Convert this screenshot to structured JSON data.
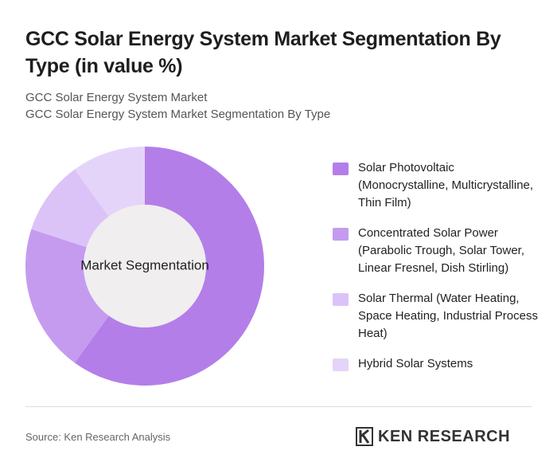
{
  "chart_data": {
    "type": "donut",
    "title": "GCC Solar Energy System Market Segmentation By Type (in value %)",
    "subtitles": [
      "GCC Solar Energy System Market",
      "GCC Solar Energy System Market Segmentation By Type"
    ],
    "center_label": "Market Segmentation",
    "categories": [
      "Solar Photovoltaic (Monocrystalline, Multicrystalline, Thin Film)",
      "Concentrated Solar Power (Parabolic Trough, Solar Tower, Linear Fresnel, Dish Stirling)",
      "Solar Thermal (Water Heating, Space Heating, Industrial Process Heat)",
      "Hybrid Solar Systems"
    ],
    "values": [
      60,
      20,
      10,
      10
    ],
    "colors": [
      "#b47ee9",
      "#c59bf0",
      "#dbc3f7",
      "#e5d4f9"
    ]
  },
  "source": "Source: Ken Research Analysis",
  "brand": "KEN RESEARCH"
}
